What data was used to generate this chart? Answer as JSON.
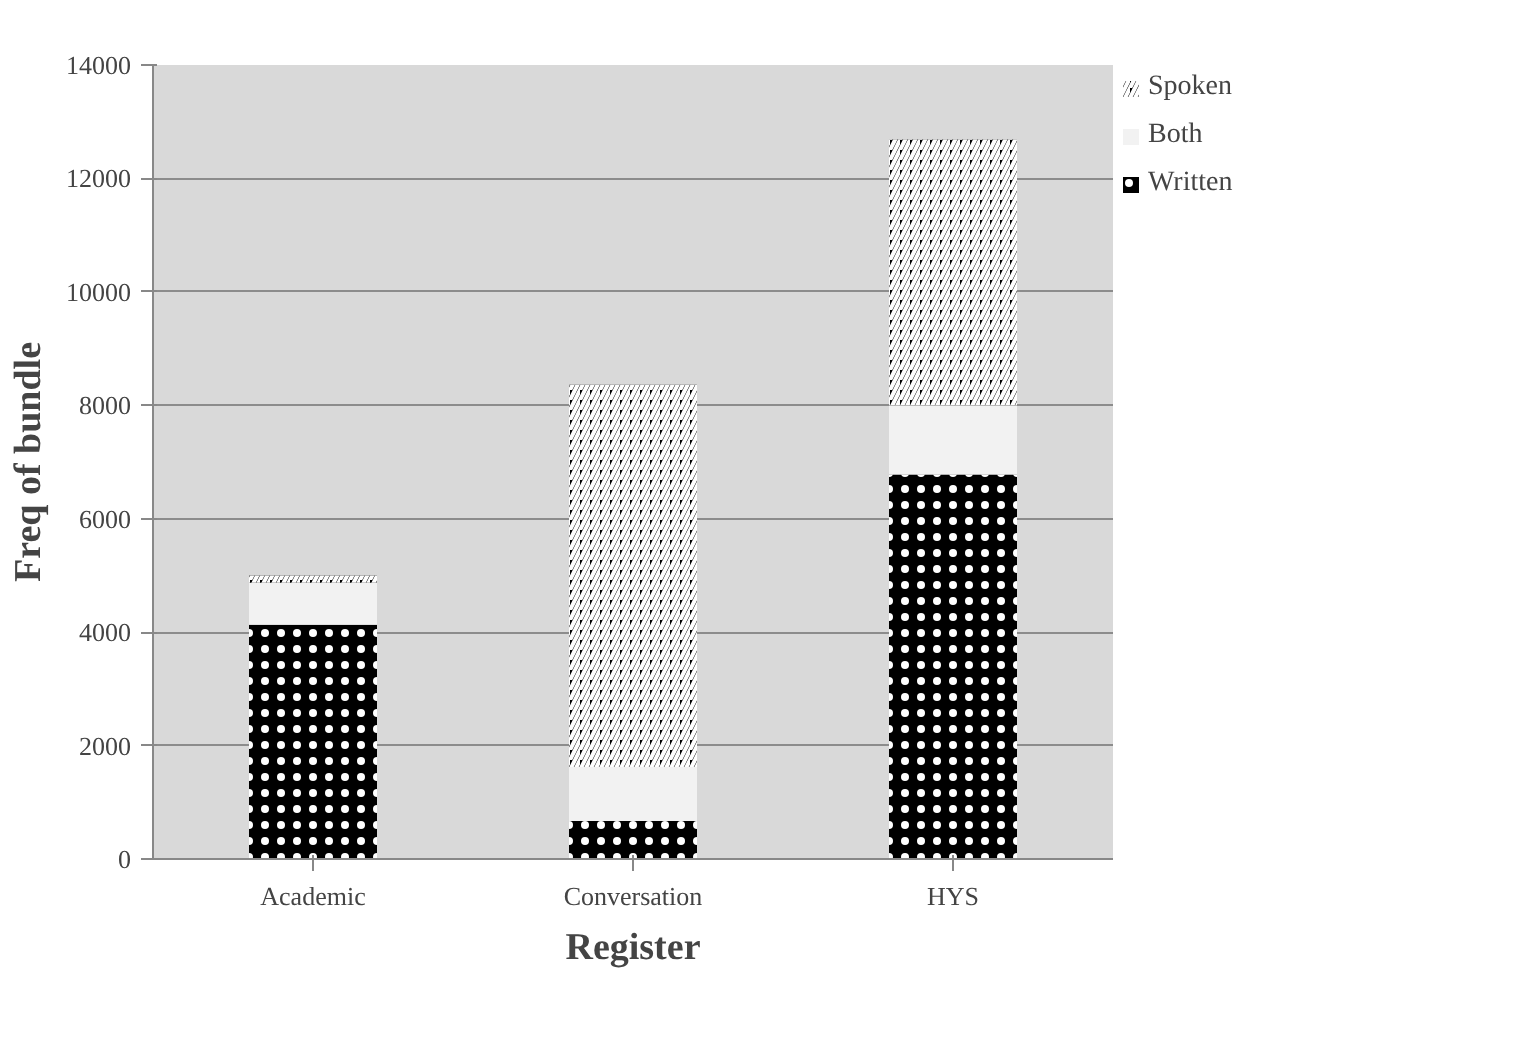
{
  "chart_data": {
    "type": "bar",
    "stacked": true,
    "xlabel": "Register",
    "ylabel": "Freq of bundle",
    "categories": [
      "Academic",
      "Conversation",
      "HYS"
    ],
    "series": [
      {
        "name": "Written",
        "color": "#000000",
        "values": [
          4130,
          670,
          6780
        ]
      },
      {
        "name": "Both",
        "color": "#f2f2f2",
        "values": [
          740,
          950,
          1220
        ]
      },
      {
        "name": "Spoken",
        "color": "#000000",
        "values": [
          130,
          6740,
          4690
        ]
      }
    ],
    "ylim": [
      0,
      14000
    ],
    "yticks": [
      0,
      2000,
      4000,
      6000,
      8000,
      10000,
      12000,
      14000
    ],
    "grid": "y",
    "legend": "right"
  }
}
